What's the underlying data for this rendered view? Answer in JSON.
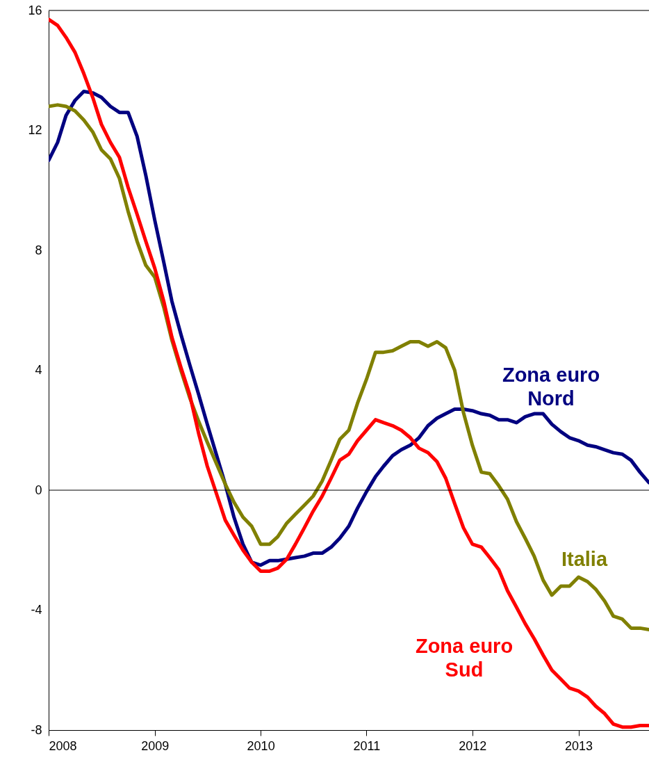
{
  "chart_data": {
    "type": "line",
    "x": [
      "2008-01",
      "2008-02",
      "2008-03",
      "2008-04",
      "2008-05",
      "2008-06",
      "2008-07",
      "2008-08",
      "2008-09",
      "2008-10",
      "2008-11",
      "2008-12",
      "2009-01",
      "2009-02",
      "2009-03",
      "2009-04",
      "2009-05",
      "2009-06",
      "2009-07",
      "2009-08",
      "2009-09",
      "2009-10",
      "2009-11",
      "2009-12",
      "2010-01",
      "2010-02",
      "2010-03",
      "2010-04",
      "2010-05",
      "2010-06",
      "2010-07",
      "2010-08",
      "2010-09",
      "2010-10",
      "2010-11",
      "2010-12",
      "2011-01",
      "2011-02",
      "2011-03",
      "2011-04",
      "2011-05",
      "2011-06",
      "2011-07",
      "2011-08",
      "2011-09",
      "2011-10",
      "2011-11",
      "2011-12",
      "2012-01",
      "2012-02",
      "2012-03",
      "2012-04",
      "2012-05",
      "2012-06",
      "2012-07",
      "2012-08",
      "2012-09",
      "2012-10",
      "2012-11",
      "2012-12",
      "2013-01",
      "2013-02",
      "2013-03",
      "2013-04",
      "2013-05",
      "2013-06",
      "2013-07",
      "2013-08",
      "2013-09"
    ],
    "series": [
      {
        "name": "Zona euro Nord",
        "color": "#000080",
        "values": [
          11.0,
          11.6,
          12.5,
          13.0,
          13.3,
          13.25,
          13.1,
          12.8,
          12.6,
          12.6,
          11.8,
          10.5,
          9.0,
          7.6,
          6.3,
          5.2,
          4.2,
          3.2,
          2.2,
          1.2,
          0.2,
          -0.9,
          -1.8,
          -2.4,
          -2.5,
          -2.35,
          -2.35,
          -2.3,
          -2.25,
          -2.2,
          -2.1,
          -2.1,
          -1.9,
          -1.6,
          -1.2,
          -0.6,
          -0.05,
          0.45,
          0.8,
          1.15,
          1.35,
          1.5,
          1.75,
          2.15,
          2.4,
          2.55,
          2.7,
          2.7,
          2.65,
          2.55,
          2.5,
          2.35,
          2.35,
          2.25,
          2.45,
          2.55,
          2.55,
          2.2,
          1.95,
          1.75,
          1.65,
          1.5,
          1.45,
          1.35,
          1.25,
          1.2,
          1.0,
          0.6,
          0.25
        ]
      },
      {
        "name": "Italia",
        "color": "#808000",
        "values": [
          12.8,
          12.85,
          12.8,
          12.65,
          12.35,
          11.95,
          11.35,
          11.05,
          10.4,
          9.3,
          8.3,
          7.5,
          7.1,
          6.1,
          5.0,
          4.0,
          3.1,
          2.3,
          1.6,
          0.9,
          0.2,
          -0.4,
          -0.9,
          -1.2,
          -1.8,
          -1.8,
          -1.55,
          -1.1,
          -0.8,
          -0.5,
          -0.2,
          0.3,
          1.0,
          1.7,
          2.0,
          2.9,
          3.7,
          4.6,
          4.6,
          4.65,
          4.8,
          4.95,
          4.95,
          4.8,
          4.95,
          4.75,
          4.0,
          2.6,
          1.5,
          0.6,
          0.55,
          0.15,
          -0.3,
          -1.05,
          -1.6,
          -2.2,
          -3.0,
          -3.5,
          -3.2,
          -3.2,
          -2.9,
          -3.05,
          -3.3,
          -3.7,
          -4.2,
          -4.3,
          -4.6,
          -4.6,
          -4.65
        ]
      },
      {
        "name": "Zona euro Sud",
        "color": "#ff0000",
        "values": [
          15.7,
          15.5,
          15.1,
          14.6,
          13.9,
          13.1,
          12.2,
          11.6,
          11.1,
          10.1,
          9.2,
          8.3,
          7.4,
          6.3,
          5.1,
          4.1,
          3.2,
          1.9,
          0.8,
          -0.1,
          -1.0,
          -1.5,
          -2.0,
          -2.4,
          -2.7,
          -2.7,
          -2.6,
          -2.3,
          -1.8,
          -1.25,
          -0.7,
          -0.2,
          0.4,
          1.0,
          1.2,
          1.65,
          2.0,
          2.35,
          2.25,
          2.15,
          2.0,
          1.75,
          1.4,
          1.25,
          0.95,
          0.4,
          -0.45,
          -1.25,
          -1.8,
          -1.9,
          -2.25,
          -2.65,
          -3.35,
          -3.9,
          -4.45,
          -4.95,
          -5.5,
          -6.0,
          -6.3,
          -6.6,
          -6.7,
          -6.9,
          -7.2,
          -7.45,
          -7.8,
          -7.9,
          -7.9,
          -7.85,
          -7.85
        ]
      }
    ],
    "xlim": [
      "2008-01",
      "2013-09"
    ],
    "xticks": [
      "2008",
      "2009",
      "2010",
      "2011",
      "2012",
      "2013"
    ],
    "ylim": [
      -8,
      16
    ],
    "yticks": [
      -8,
      -4,
      0,
      4,
      8,
      12,
      16
    ],
    "ref_lines": [
      {
        "axis": "y",
        "value": 0
      }
    ],
    "grid": false,
    "marker": "none",
    "line_style": "solid"
  }
}
